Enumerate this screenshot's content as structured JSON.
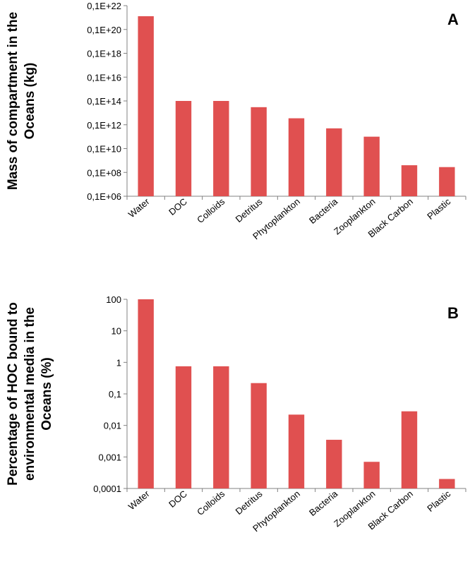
{
  "chart_data": [
    {
      "type": "bar",
      "panel_label": "A",
      "ylabel_lines": [
        "Mass of compartment in the",
        "Oceans (kg)"
      ],
      "scale": "log",
      "ylim": [
        1000000.0,
        1e+22
      ],
      "tick_labels": [
        "0,1E+06",
        "0,1E+08",
        "0,1E+10",
        "0,1E+12",
        "0,1E+14",
        "0,1E+16",
        "0,1E+18",
        "0,1E+20",
        "0,1E+22"
      ],
      "categories": [
        "Water",
        "DOC",
        "Colloids",
        "Detritus",
        "Phytoplankton",
        "Bacteria",
        "Zooplankton",
        "Black Carbon",
        "Plastic"
      ],
      "values": [
        1.3e+21,
        100000000000000.0,
        100000000000000.0,
        30000000000000.0,
        3500000000000.0,
        500000000000.0,
        100000000000.0,
        400000000.0,
        280000000.0
      ],
      "color": "#E05050"
    },
    {
      "type": "bar",
      "panel_label": "B",
      "ylabel_lines": [
        "Percentage of HOC bound to",
        "environmental media in the",
        "Oceans (%)"
      ],
      "scale": "log",
      "ylim": [
        0.0001,
        100
      ],
      "tick_labels": [
        "0,0001",
        "0,001",
        "0,01",
        "0,1",
        "1",
        "10",
        "100"
      ],
      "categories": [
        "Water",
        "DOC",
        "Colloids",
        "Detritus",
        "Phytoplankton",
        "Bacteria",
        "Zooplankton",
        "Black Carbon",
        "Plastic"
      ],
      "values": [
        100,
        0.75,
        0.75,
        0.22,
        0.022,
        0.0035,
        0.0007,
        0.028,
        0.0002
      ],
      "color": "#E05050"
    }
  ]
}
